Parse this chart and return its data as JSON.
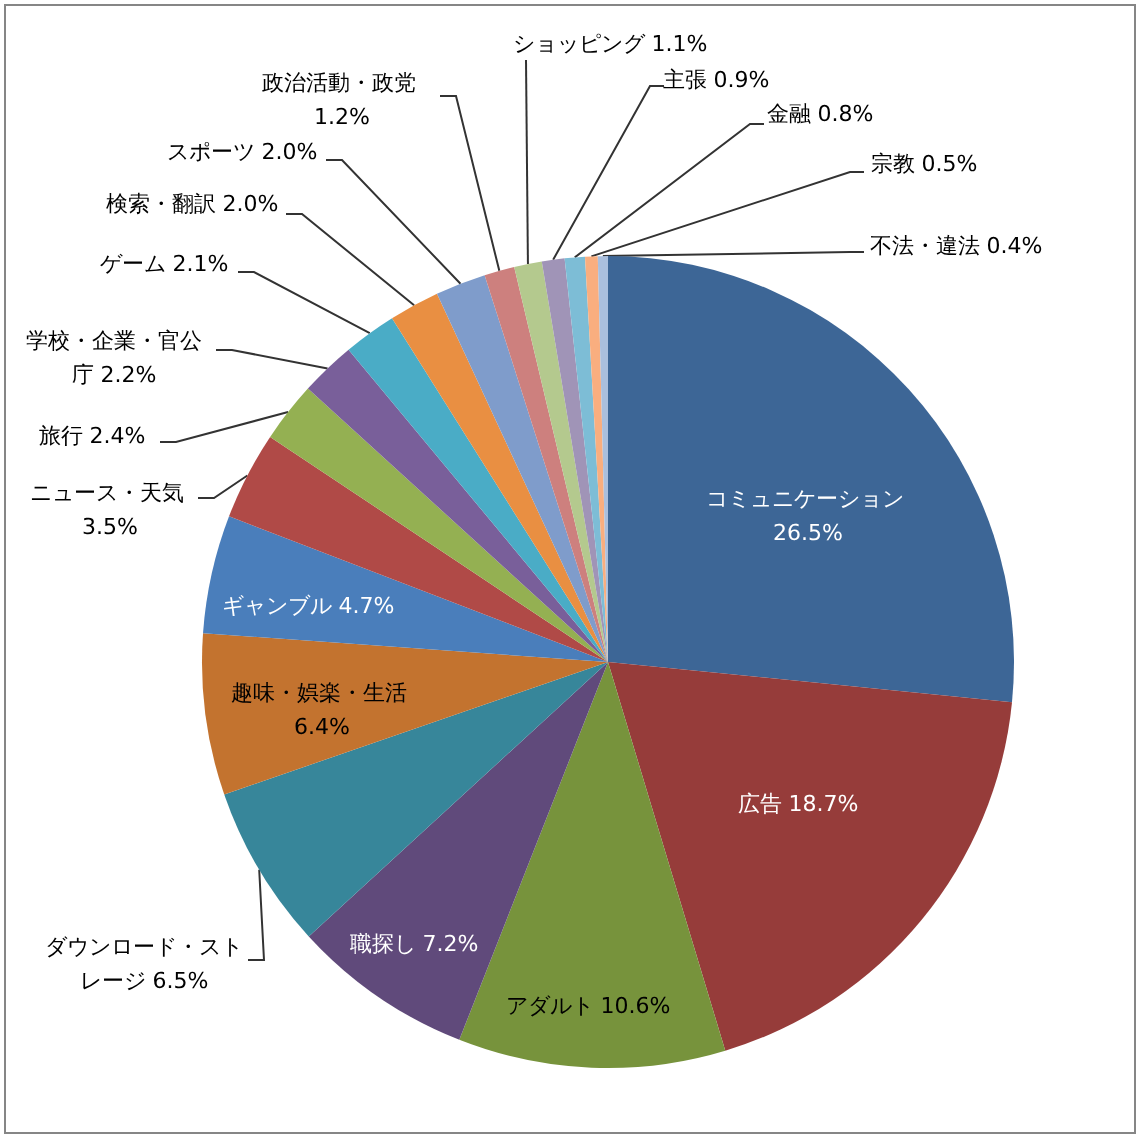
{
  "chart_data": {
    "type": "pie",
    "categories": [
      "コミュニケーション",
      "広告",
      "アダルト",
      "職探し",
      "ダウンロード・ストレージ",
      "趣味・娯楽・生活",
      "ギャンブル",
      "ニュース・天気",
      "旅行",
      "学校・企業・官公庁",
      "ゲーム",
      "検索・翻訳",
      "スポーツ",
      "政治活動・政党",
      "ショッピング",
      "主張",
      "金融",
      "宗教",
      "不法・違法"
    ],
    "values": [
      26.5,
      18.7,
      10.6,
      7.2,
      6.5,
      6.4,
      4.7,
      3.5,
      2.4,
      2.2,
      2.1,
      2.0,
      2.0,
      1.2,
      1.1,
      0.9,
      0.8,
      0.5,
      0.4
    ],
    "value_labels": [
      "26.5%",
      "18.7%",
      "10.6%",
      "7.2%",
      "6.5%",
      "6.4%",
      "4.7%",
      "3.5%",
      "2.4%",
      "2.2%",
      "2.1%",
      "2.0%",
      "2.0%",
      "1.2%",
      "1.1%",
      "0.9%",
      "0.8%",
      "0.5%",
      "0.4%"
    ],
    "colors": [
      "#3d6696",
      "#963c3a",
      "#77933c",
      "#604a7b",
      "#37869a",
      "#c3732f",
      "#4a7ebb",
      "#b04a47",
      "#94b052",
      "#795f9a",
      "#4aacc6",
      "#e98f42",
      "#7f9ccb",
      "#cd807e",
      "#b4c98e",
      "#a094b7",
      "#7dbdd6",
      "#f9ae7f",
      "#aabfdd"
    ]
  }
}
